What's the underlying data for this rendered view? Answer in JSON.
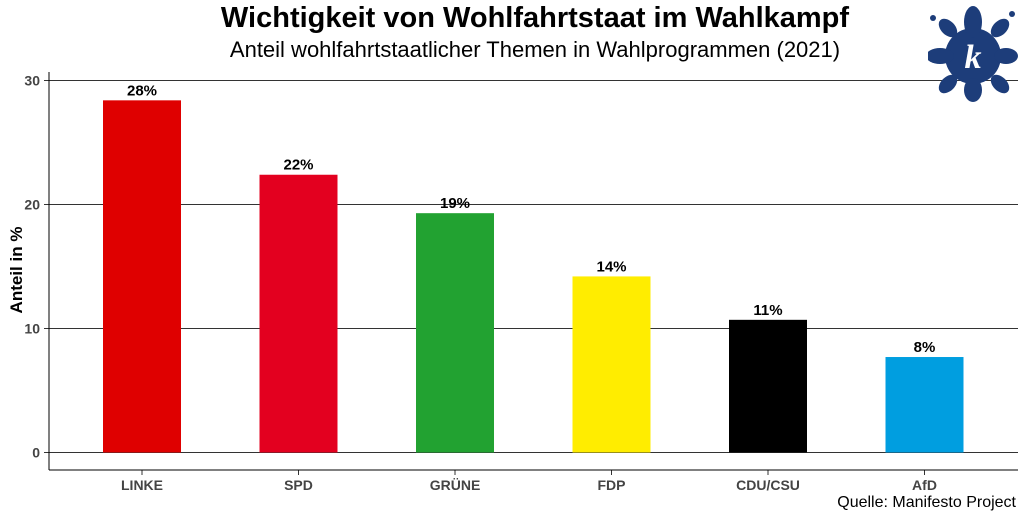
{
  "title": "Wichtigkeit von Wohlfahrtstaat im Wahlkampf",
  "subtitle": "Anteil wohlfahrtstaatlicher Themen in Wahlprogrammen (2021)",
  "caption": "Quelle: Manifesto Project",
  "logo": {
    "icon": "flower-k-logo",
    "letter": "k",
    "color": "#1d3d7a"
  },
  "chart_data": {
    "type": "bar",
    "title": "Wichtigkeit von Wohlfahrtstaat im Wahlkampf",
    "subtitle": "Anteil wohlfahrtstaatlicher Themen in Wahlprogrammen (2021)",
    "xlabel": "",
    "ylabel": "Anteil in %",
    "ylim": [
      0,
      30
    ],
    "yticks": [
      0,
      10,
      20,
      30
    ],
    "grid": "horizontal major",
    "categories": [
      "LINKE",
      "SPD",
      "GRÜNE",
      "FDP",
      "CDU/CSU",
      "AfD"
    ],
    "values": [
      28.4,
      22.4,
      19.3,
      14.2,
      10.7,
      7.7
    ],
    "labels": [
      "28%",
      "22%",
      "19%",
      "14%",
      "11%",
      "8%"
    ],
    "colors": [
      "#df0000",
      "#e3001f",
      "#22a231",
      "#ffed00",
      "#000000",
      "#009ee0"
    ]
  }
}
